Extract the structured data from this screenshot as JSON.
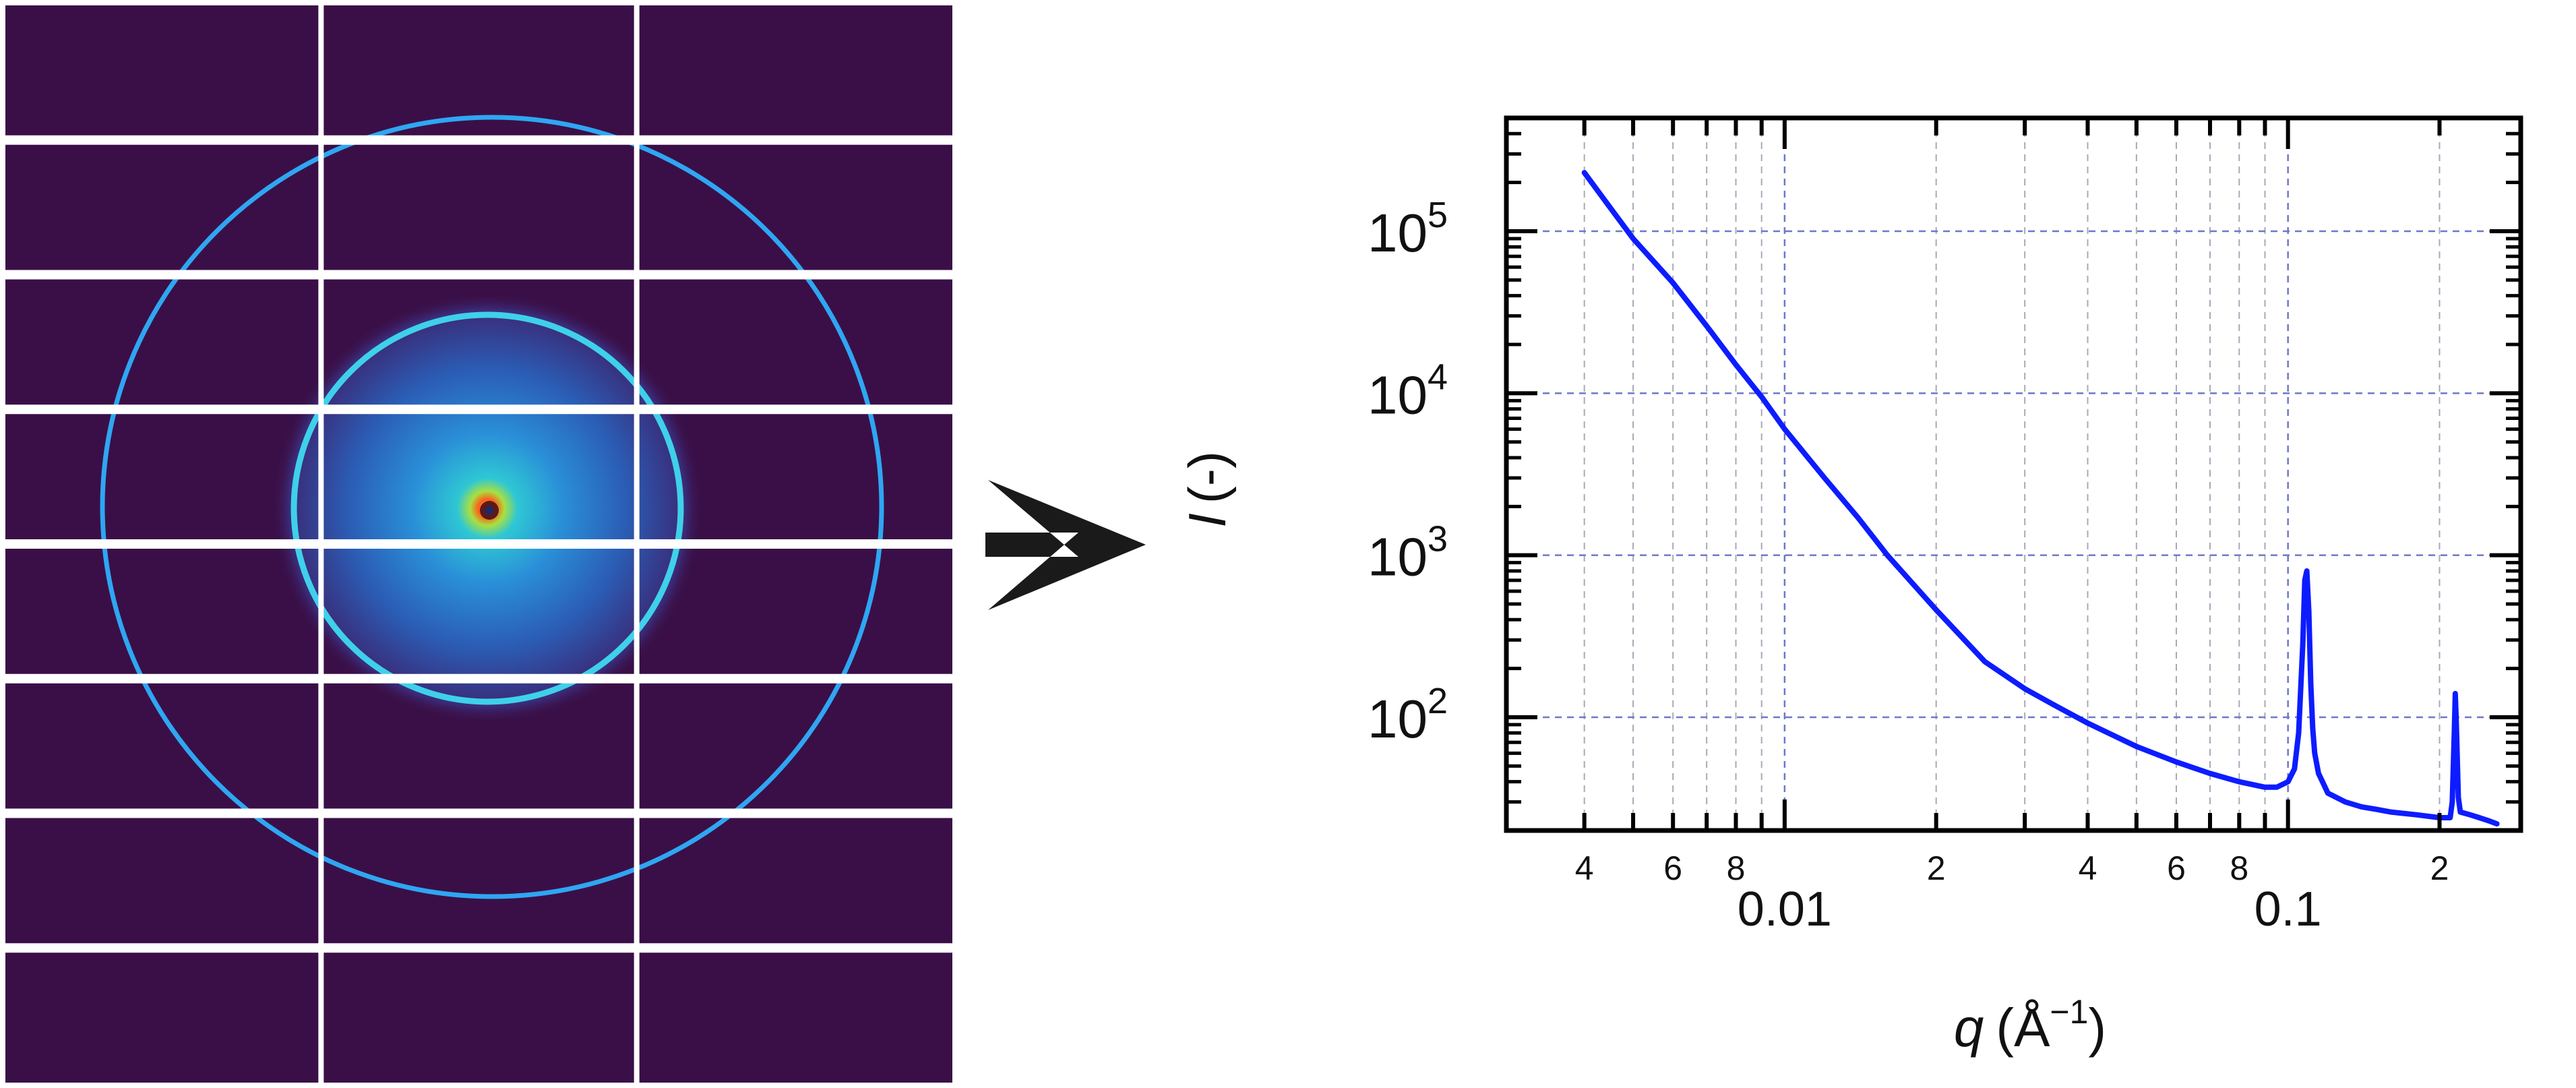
{
  "colors": {
    "detector_bg": "#3a0f47",
    "module_gap": "#ffffff",
    "ring": "#2fa6f2",
    "ring_inner": "#3fd0ea",
    "curve": "#0d1cff",
    "grid": "#6d78c8",
    "arrow": "#1a1a1a",
    "axis": "#000000"
  },
  "panels": {
    "left": {
      "kind": "2D detector scattering image",
      "grid_columns": 3,
      "grid_rows": 8
    },
    "arrow": "right-arrow-icon"
  },
  "chart_data": {
    "type": "line",
    "title": "",
    "xlabel": {
      "symbol": "q",
      "unit": "(Å",
      "exponent": "−1",
      "close": ")"
    },
    "ylabel": {
      "symbol": "I",
      "unit": "(-)"
    },
    "xscale": "log",
    "yscale": "log",
    "xlim": [
      0.0028,
      0.29
    ],
    "ylim": [
      20,
      500000
    ],
    "grid": true,
    "x_major_ticks": [
      {
        "value": 0.01,
        "label": "0.01"
      },
      {
        "value": 0.1,
        "label": "0.1"
      }
    ],
    "x_minor_ticks": [
      {
        "value": 0.004,
        "label": "4"
      },
      {
        "value": 0.005,
        "label": ""
      },
      {
        "value": 0.006,
        "label": "6"
      },
      {
        "value": 0.007,
        "label": ""
      },
      {
        "value": 0.008,
        "label": "8"
      },
      {
        "value": 0.009,
        "label": ""
      },
      {
        "value": 0.02,
        "label": "2"
      },
      {
        "value": 0.03,
        "label": ""
      },
      {
        "value": 0.04,
        "label": "4"
      },
      {
        "value": 0.05,
        "label": ""
      },
      {
        "value": 0.06,
        "label": "6"
      },
      {
        "value": 0.07,
        "label": ""
      },
      {
        "value": 0.08,
        "label": "8"
      },
      {
        "value": 0.09,
        "label": ""
      },
      {
        "value": 0.2,
        "label": "2"
      }
    ],
    "y_major_ticks": [
      {
        "value": 100,
        "base": "10",
        "exp": "2"
      },
      {
        "value": 1000,
        "base": "10",
        "exp": "3"
      },
      {
        "value": 10000,
        "base": "10",
        "exp": "4"
      },
      {
        "value": 100000,
        "base": "10",
        "exp": "5"
      }
    ],
    "series": [
      {
        "x": [
          0.004,
          0.0045,
          0.005,
          0.006,
          0.007,
          0.008,
          0.009,
          0.01,
          0.012,
          0.014,
          0.016,
          0.02,
          0.025,
          0.03,
          0.035,
          0.04,
          0.05,
          0.06,
          0.07,
          0.08,
          0.09,
          0.095,
          0.1,
          0.103,
          0.105,
          0.107,
          0.108,
          0.109,
          0.11,
          0.111,
          0.112,
          0.113,
          0.115,
          0.118,
          0.12,
          0.13,
          0.14,
          0.15,
          0.16,
          0.18,
          0.2,
          0.21,
          0.212,
          0.214,
          0.215,
          0.216,
          0.218,
          0.22,
          0.23,
          0.24,
          0.25,
          0.26
        ],
        "y": [
          230000,
          140000,
          90000,
          48000,
          26000,
          15000,
          9500,
          6000,
          3000,
          1700,
          1000,
          460,
          220,
          150,
          115,
          92,
          66,
          53,
          45,
          40,
          37,
          37,
          40,
          48,
          80,
          280,
          700,
          800,
          450,
          160,
          85,
          60,
          45,
          38,
          34,
          30,
          28,
          27,
          26,
          25,
          24,
          24,
          30,
          80,
          140,
          90,
          32,
          26,
          25,
          24,
          23,
          22
        ]
      }
    ]
  }
}
